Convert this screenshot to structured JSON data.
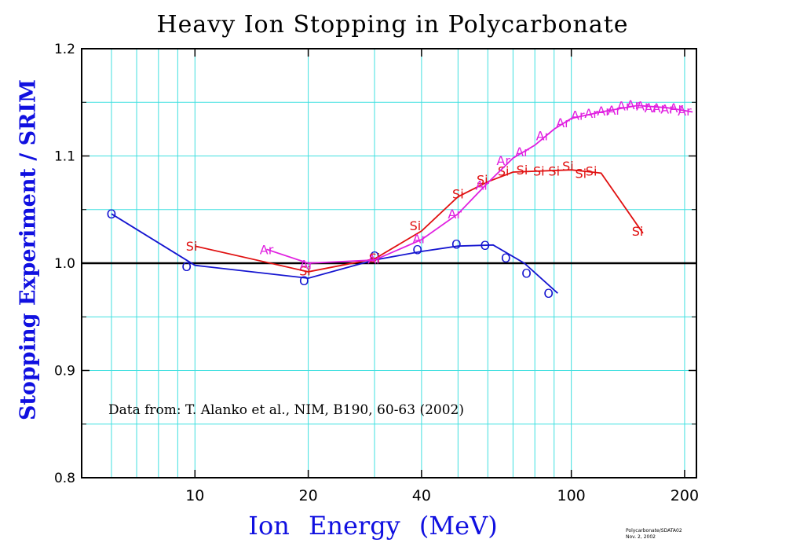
{
  "chart_data": {
    "type": "line",
    "title": "Heavy Ion Stopping in Polycarbonate",
    "xlabel": "Ion   Energy (MeV)",
    "ylabel": "Stopping Experiment / SRIM",
    "x_scale": "log",
    "xlim": [
      5,
      215
    ],
    "ylim": [
      0.8,
      1.2
    ],
    "x_ticks": [
      10,
      20,
      40,
      100,
      200
    ],
    "x_tick_labels": [
      "10",
      "20",
      "40",
      "100",
      "200"
    ],
    "y_ticks": [
      0.8,
      0.9,
      1.0,
      1.1,
      1.2
    ],
    "y_tick_labels": [
      "0.8",
      "0.9",
      "1.0",
      "1.1",
      "1.2"
    ],
    "grid": true,
    "reference_line": 1.0,
    "annotation": "Data from: T. Alanko et al., NIM, B190, 60-63 (2002)",
    "credit": [
      "Polycarbonate/SDATA02",
      "Nov. 2, 2002"
    ],
    "colors": {
      "O": "#1515d0",
      "Si": "#e01010",
      "Ar": "#e020e0",
      "grid": "#40e0e0",
      "axis_title": "#1010e0"
    },
    "series": [
      {
        "name": "O",
        "marker": "O",
        "color": "#1515d0",
        "points": [
          {
            "x": 6.0,
            "y": 1.046
          },
          {
            "x": 9.5,
            "y": 0.997
          },
          {
            "x": 19.5,
            "y": 0.984
          },
          {
            "x": 30,
            "y": 1.007
          },
          {
            "x": 39,
            "y": 1.013
          },
          {
            "x": 49.5,
            "y": 1.018
          },
          {
            "x": 59,
            "y": 1.017
          },
          {
            "x": 67,
            "y": 1.005
          },
          {
            "x": 76,
            "y": 0.991
          },
          {
            "x": 87,
            "y": 0.972
          }
        ],
        "fit": [
          {
            "x": 6.0,
            "y": 1.046
          },
          {
            "x": 10,
            "y": 0.998
          },
          {
            "x": 20,
            "y": 0.986
          },
          {
            "x": 30,
            "y": 1.003
          },
          {
            "x": 40,
            "y": 1.011
          },
          {
            "x": 50,
            "y": 1.016
          },
          {
            "x": 62,
            "y": 1.017
          },
          {
            "x": 75,
            "y": 1.0
          },
          {
            "x": 92,
            "y": 0.972
          }
        ]
      },
      {
        "name": "Si",
        "marker": "Si",
        "color": "#e01010",
        "points": [
          {
            "x": 9.8,
            "y": 1.016
          },
          {
            "x": 19.6,
            "y": 0.993
          },
          {
            "x": 30,
            "y": 1.005
          },
          {
            "x": 38.5,
            "y": 1.035
          },
          {
            "x": 50,
            "y": 1.065
          },
          {
            "x": 58,
            "y": 1.078
          },
          {
            "x": 66,
            "y": 1.086
          },
          {
            "x": 74,
            "y": 1.087
          },
          {
            "x": 82,
            "y": 1.086
          },
          {
            "x": 90,
            "y": 1.086
          },
          {
            "x": 98,
            "y": 1.091
          },
          {
            "x": 106,
            "y": 1.084
          },
          {
            "x": 113,
            "y": 1.086
          },
          {
            "x": 150,
            "y": 1.03
          }
        ],
        "fit": [
          {
            "x": 10,
            "y": 1.016
          },
          {
            "x": 20,
            "y": 0.992
          },
          {
            "x": 30,
            "y": 1.004
          },
          {
            "x": 40,
            "y": 1.03
          },
          {
            "x": 50,
            "y": 1.062
          },
          {
            "x": 60,
            "y": 1.076
          },
          {
            "x": 70,
            "y": 1.085
          },
          {
            "x": 100,
            "y": 1.087
          },
          {
            "x": 120,
            "y": 1.084
          },
          {
            "x": 155,
            "y": 1.028
          }
        ]
      },
      {
        "name": "Ar",
        "marker": "Ar",
        "color": "#e020e0",
        "points": [
          {
            "x": 15.5,
            "y": 1.013
          },
          {
            "x": 19.8,
            "y": 0.999
          },
          {
            "x": 30,
            "y": 1.004
          },
          {
            "x": 39.5,
            "y": 1.023
          },
          {
            "x": 49,
            "y": 1.046
          },
          {
            "x": 58,
            "y": 1.073
          },
          {
            "x": 66,
            "y": 1.096
          },
          {
            "x": 74,
            "y": 1.104
          },
          {
            "x": 84,
            "y": 1.119
          },
          {
            "x": 95,
            "y": 1.131
          },
          {
            "x": 104,
            "y": 1.138
          },
          {
            "x": 113,
            "y": 1.14
          },
          {
            "x": 122,
            "y": 1.142
          },
          {
            "x": 130,
            "y": 1.143
          },
          {
            "x": 138,
            "y": 1.147
          },
          {
            "x": 146,
            "y": 1.148
          },
          {
            "x": 155,
            "y": 1.147
          },
          {
            "x": 163,
            "y": 1.145
          },
          {
            "x": 171,
            "y": 1.145
          },
          {
            "x": 180,
            "y": 1.144
          },
          {
            "x": 190,
            "y": 1.145
          },
          {
            "x": 200,
            "y": 1.142
          }
        ],
        "fit": [
          {
            "x": 15.5,
            "y": 1.013
          },
          {
            "x": 20,
            "y": 1.0
          },
          {
            "x": 30,
            "y": 1.003
          },
          {
            "x": 40,
            "y": 1.022
          },
          {
            "x": 50,
            "y": 1.046
          },
          {
            "x": 60,
            "y": 1.075
          },
          {
            "x": 70,
            "y": 1.098
          },
          {
            "x": 80,
            "y": 1.11
          },
          {
            "x": 90,
            "y": 1.125
          },
          {
            "x": 100,
            "y": 1.135
          },
          {
            "x": 120,
            "y": 1.141
          },
          {
            "x": 150,
            "y": 1.147
          },
          {
            "x": 180,
            "y": 1.145
          },
          {
            "x": 210,
            "y": 1.141
          }
        ]
      }
    ]
  }
}
